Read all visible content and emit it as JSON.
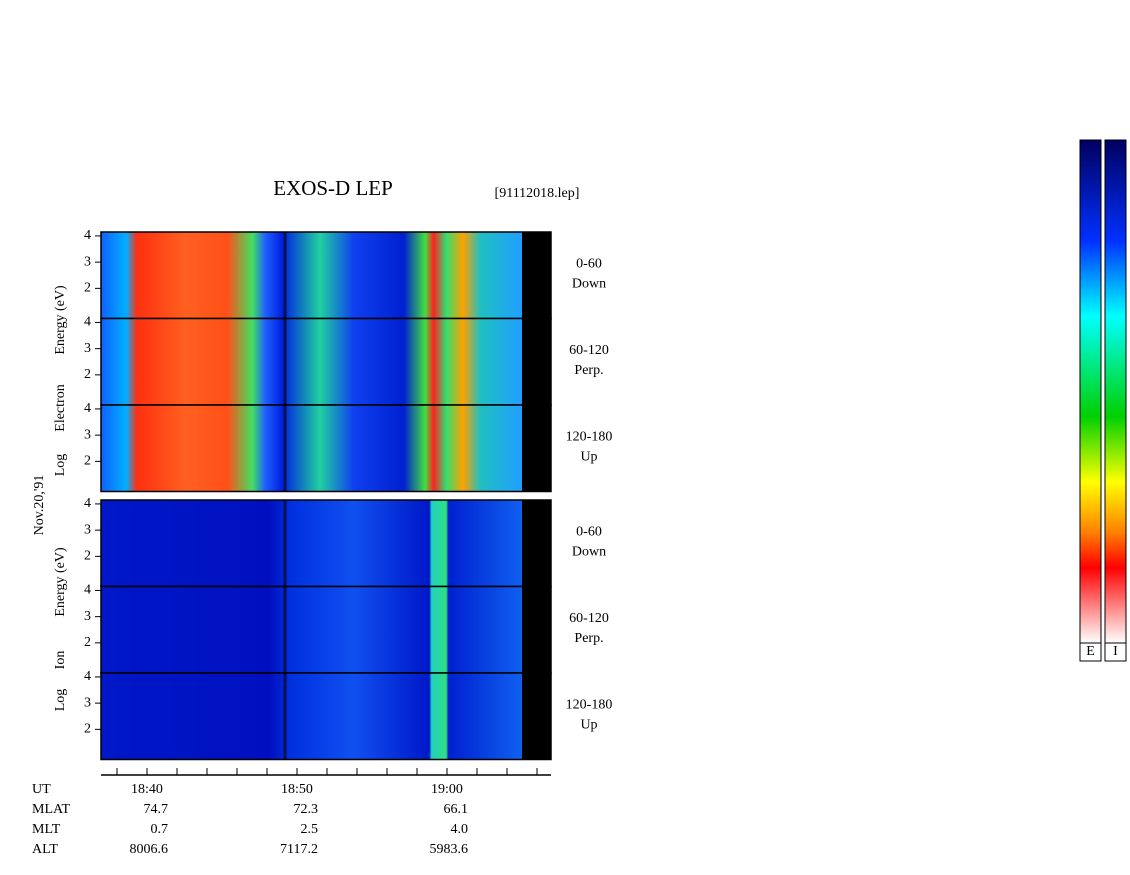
{
  "chart_data": {
    "type": "spectrogram",
    "title": "EXOS-D LEP",
    "file": "[91112018.lep]",
    "date": "Nov.20,'91",
    "ylim": [
      0.85,
      4.15
    ],
    "yticks": [
      2,
      3,
      4
    ],
    "groups": [
      {
        "name": "Electron",
        "label": [
          "Log",
          "Electron",
          "Energy (eV)"
        ]
      },
      {
        "name": "Ion",
        "label": [
          "Log",
          "Ion",
          "Energy (eV)"
        ]
      }
    ],
    "panels": [
      {
        "angle": "0-60",
        "direction": "Down"
      },
      {
        "angle": "60-120",
        "direction": "Perp."
      },
      {
        "angle": "120-180",
        "direction": "Up"
      }
    ],
    "orbit_table": [
      {
        "label": "UT",
        "values": [
          "18:40",
          "18:50",
          "19:00"
        ]
      },
      {
        "label": "MLAT",
        "values": [
          "74.7",
          "72.3",
          "66.1"
        ]
      },
      {
        "label": "MLT",
        "values": [
          "0.7",
          "2.5",
          "4.0"
        ]
      },
      {
        "label": "ALT",
        "values": [
          "8006.6",
          "7117.2",
          "5983.6"
        ]
      }
    ],
    "colorbars": [
      "E",
      "I"
    ]
  }
}
